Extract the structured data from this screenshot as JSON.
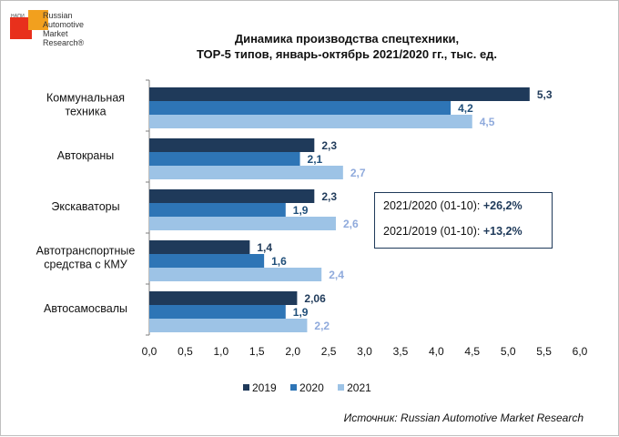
{
  "logo": {
    "small_text": "НАПИ",
    "lines": "Russian\nAutomotive\nMarket\nResearch®"
  },
  "chart_data": {
    "type": "bar",
    "orientation": "horizontal",
    "title": "Динамика производства спецтехники,",
    "subtitle": "ТОР-5 типов, январь-октябрь 2021/2020 гг., тыс. ед.",
    "categories": [
      [
        "Коммунальная",
        "техника"
      ],
      [
        "Автокраны"
      ],
      [
        "Экскаваторы"
      ],
      [
        "Автотранспортные",
        "средства с КМУ"
      ],
      [
        "Автосамосвалы"
      ]
    ],
    "series": [
      {
        "name": "2019",
        "color": "#1f3a5a",
        "label_color": "#1f3a5a",
        "values": [
          5.3,
          2.3,
          2.3,
          1.4,
          2.06
        ],
        "labels": [
          "5,3",
          "2,3",
          "2,3",
          "1,4",
          "2,06"
        ]
      },
      {
        "name": "2020",
        "color": "#2e75b6",
        "label_color": "#1f4e79",
        "values": [
          4.2,
          2.1,
          1.9,
          1.6,
          1.9
        ],
        "labels": [
          "4,2",
          "2,1",
          "1,9",
          "1,6",
          "1,9"
        ]
      },
      {
        "name": "2021",
        "color": "#9dc3e6",
        "label_color": "#8faadc",
        "values": [
          4.5,
          2.7,
          2.6,
          2.4,
          2.2
        ],
        "labels": [
          "4,5",
          "2,7",
          "2,6",
          "2,4",
          "2,2"
        ]
      }
    ],
    "xlim": [
      0,
      6
    ],
    "xticks": [
      "0,0",
      "0,5",
      "1,0",
      "1,5",
      "2,0",
      "2,5",
      "3,0",
      "3,5",
      "4,0",
      "4,5",
      "5,0",
      "5,5",
      "6,0"
    ],
    "grid": false,
    "legend_position": "bottom"
  },
  "infobox": {
    "row1_label": "2021/2020 (01-10): ",
    "row1_value": "+26,2%",
    "row2_label": "2021/2019 (01-10): ",
    "row2_value": "+13,2%"
  },
  "source": "Источник: Russian Automotive Market Research"
}
